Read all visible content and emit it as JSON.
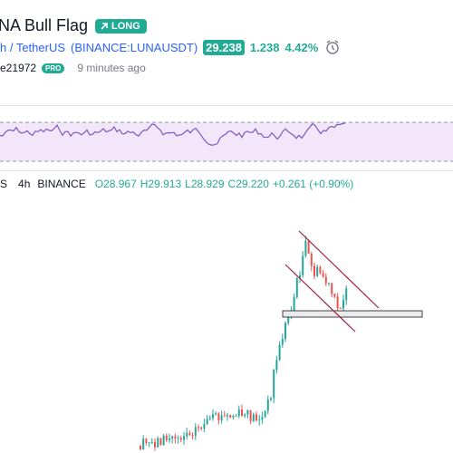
{
  "header": {
    "title": "NA Bull Flag",
    "badge": "LONG",
    "symbol_name": "h / TetherUS",
    "symbol": "(BINANCE:LUNAUSDT)",
    "price": "29.238",
    "change": "1.238",
    "change_percent": "4.42%"
  },
  "author": {
    "name": "e21972",
    "badge": "PRO",
    "time": "9 minutes ago"
  },
  "legend": {
    "symbol": "S",
    "interval": "4h",
    "exchange": "BINANCE",
    "open": "O28.967",
    "high": "H29.913",
    "low": "L28.929",
    "close": "C29.220",
    "change": "+0.261 (+0.90%)"
  }
}
